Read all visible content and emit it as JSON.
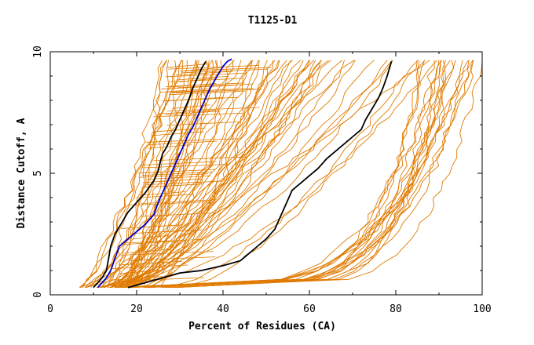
{
  "chart_data": {
    "type": "line",
    "title": "T1125-D1",
    "xlabel": "Percent of Residues (CA)",
    "ylabel": "Distance Cutoff, A",
    "xlim": [
      0,
      100
    ],
    "ylim": [
      0,
      10
    ],
    "xticks": [
      0,
      20,
      40,
      60,
      80,
      100
    ],
    "yticks": [
      0,
      5,
      10
    ],
    "colors": {
      "background_models": "#e07b00",
      "highlight_black": "#000000",
      "highlight_blue": "#0000cc"
    },
    "series": [
      {
        "name": "black-1",
        "color": "#000000",
        "x": [
          10,
          12,
          13,
          13.5,
          14,
          15,
          16,
          17,
          18,
          20,
          22,
          24,
          25,
          25.5,
          26,
          27,
          28,
          29,
          30,
          31,
          32,
          33,
          34,
          35,
          36
        ],
        "y": [
          0.3,
          0.7,
          1,
          1.5,
          2,
          2.5,
          2.8,
          3.1,
          3.4,
          3.8,
          4.2,
          4.7,
          5.1,
          5.5,
          5.8,
          6.1,
          6.5,
          6.8,
          7.2,
          7.6,
          8.0,
          8.5,
          8.9,
          9.3,
          9.6
        ]
      },
      {
        "name": "blue-1",
        "color": "#0000cc",
        "x": [
          11,
          13,
          14,
          15,
          16,
          18,
          20,
          22,
          24,
          25,
          26,
          27,
          28,
          29,
          30,
          31,
          32,
          33,
          34,
          35,
          36,
          37,
          38,
          39,
          40,
          41,
          42
        ],
        "y": [
          0.3,
          0.7,
          1.0,
          1.5,
          2.0,
          2.3,
          2.6,
          2.9,
          3.3,
          3.8,
          4.2,
          4.6,
          5.0,
          5.4,
          5.8,
          6.2,
          6.6,
          6.9,
          7.3,
          7.7,
          8.1,
          8.5,
          8.8,
          9.1,
          9.4,
          9.6,
          9.7
        ]
      },
      {
        "name": "black-2",
        "color": "#000000",
        "x": [
          18,
          22,
          26,
          30,
          35,
          40,
          44,
          46,
          48,
          50,
          52,
          53,
          54,
          55,
          56,
          58,
          60,
          62,
          64,
          66,
          68,
          70,
          72,
          73,
          74,
          75,
          76,
          77,
          78,
          79
        ],
        "y": [
          0.3,
          0.5,
          0.7,
          0.9,
          1.0,
          1.2,
          1.4,
          1.7,
          2.0,
          2.3,
          2.7,
          3.1,
          3.5,
          3.9,
          4.3,
          4.6,
          4.9,
          5.2,
          5.6,
          5.9,
          6.2,
          6.5,
          6.8,
          7.2,
          7.5,
          7.8,
          8.1,
          8.5,
          9.0,
          9.6
        ]
      }
    ],
    "background_model_count": 80
  }
}
